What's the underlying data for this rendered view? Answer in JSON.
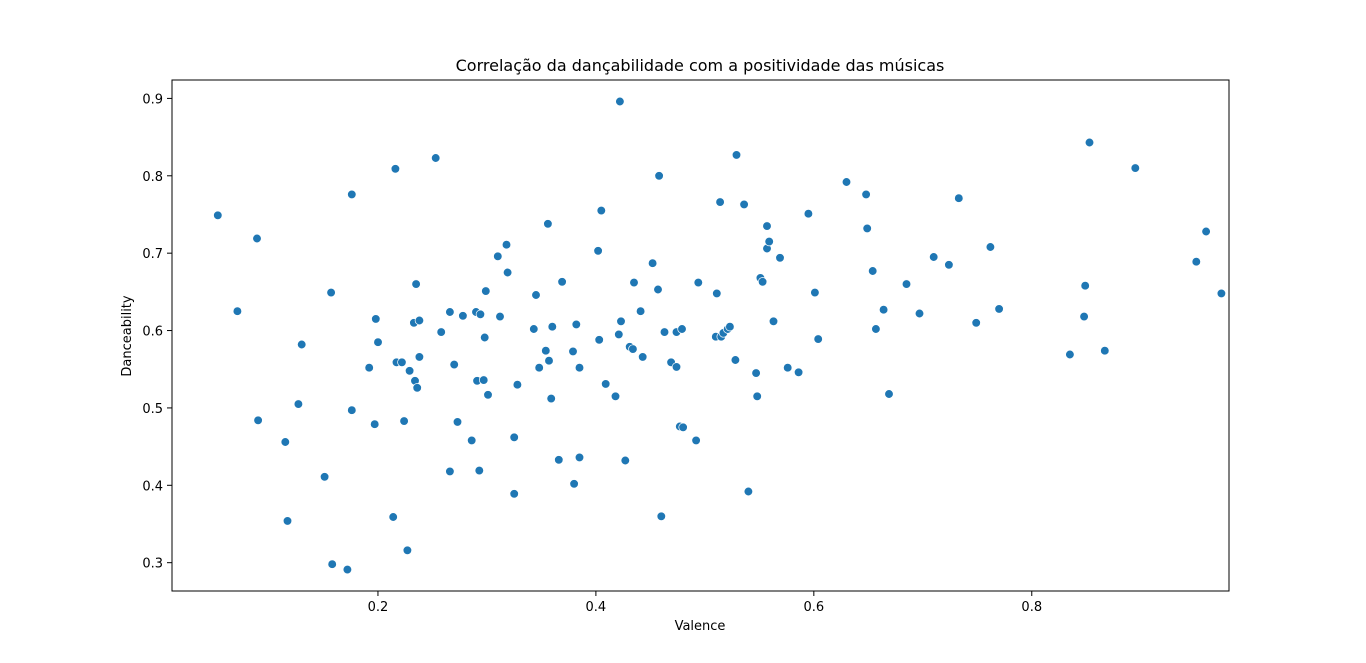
{
  "chart_data": {
    "type": "scatter",
    "title": "Correlação da dançabilidade com a positividade das músicas",
    "xlabel": "Valence",
    "ylabel": "Danceability",
    "xlim": [
      0.011,
      0.981
    ],
    "ylim": [
      0.2634,
      0.9238
    ],
    "xticks": [
      0.2,
      0.4,
      0.6,
      0.8
    ],
    "xtick_labels": [
      "0.2",
      "0.4",
      "0.6",
      "0.8"
    ],
    "yticks": [
      0.3,
      0.4,
      0.5,
      0.6,
      0.7,
      0.8,
      0.9
    ],
    "ytick_labels": [
      "0.3",
      "0.4",
      "0.5",
      "0.6",
      "0.7",
      "0.8",
      "0.9"
    ],
    "grid": false,
    "marker_color": "#1f77b4",
    "points": [
      [
        0.053,
        0.749
      ],
      [
        0.071,
        0.625
      ],
      [
        0.089,
        0.719
      ],
      [
        0.09,
        0.484
      ],
      [
        0.115,
        0.456
      ],
      [
        0.117,
        0.354
      ],
      [
        0.127,
        0.505
      ],
      [
        0.13,
        0.582
      ],
      [
        0.151,
        0.411
      ],
      [
        0.157,
        0.649
      ],
      [
        0.158,
        0.298
      ],
      [
        0.172,
        0.291
      ],
      [
        0.176,
        0.776
      ],
      [
        0.176,
        0.497
      ],
      [
        0.192,
        0.552
      ],
      [
        0.197,
        0.479
      ],
      [
        0.198,
        0.615
      ],
      [
        0.2,
        0.585
      ],
      [
        0.214,
        0.359
      ],
      [
        0.216,
        0.809
      ],
      [
        0.217,
        0.559
      ],
      [
        0.222,
        0.559
      ],
      [
        0.224,
        0.483
      ],
      [
        0.227,
        0.316
      ],
      [
        0.229,
        0.548
      ],
      [
        0.233,
        0.61
      ],
      [
        0.234,
        0.535
      ],
      [
        0.235,
        0.66
      ],
      [
        0.236,
        0.526
      ],
      [
        0.238,
        0.613
      ],
      [
        0.238,
        0.566
      ],
      [
        0.253,
        0.823
      ],
      [
        0.258,
        0.598
      ],
      [
        0.266,
        0.624
      ],
      [
        0.266,
        0.418
      ],
      [
        0.27,
        0.556
      ],
      [
        0.273,
        0.482
      ],
      [
        0.278,
        0.619
      ],
      [
        0.286,
        0.458
      ],
      [
        0.29,
        0.624
      ],
      [
        0.291,
        0.535
      ],
      [
        0.293,
        0.419
      ],
      [
        0.294,
        0.621
      ],
      [
        0.297,
        0.536
      ],
      [
        0.299,
        0.651
      ],
      [
        0.298,
        0.591
      ],
      [
        0.301,
        0.517
      ],
      [
        0.31,
        0.696
      ],
      [
        0.312,
        0.618
      ],
      [
        0.318,
        0.711
      ],
      [
        0.319,
        0.675
      ],
      [
        0.325,
        0.389
      ],
      [
        0.325,
        0.462
      ],
      [
        0.328,
        0.53
      ],
      [
        0.343,
        0.602
      ],
      [
        0.345,
        0.646
      ],
      [
        0.348,
        0.552
      ],
      [
        0.354,
        0.574
      ],
      [
        0.356,
        0.738
      ],
      [
        0.357,
        0.561
      ],
      [
        0.359,
        0.512
      ],
      [
        0.36,
        0.605
      ],
      [
        0.366,
        0.433
      ],
      [
        0.369,
        0.663
      ],
      [
        0.379,
        0.573
      ],
      [
        0.38,
        0.402
      ],
      [
        0.382,
        0.608
      ],
      [
        0.385,
        0.436
      ],
      [
        0.385,
        0.552
      ],
      [
        0.402,
        0.703
      ],
      [
        0.403,
        0.588
      ],
      [
        0.405,
        0.755
      ],
      [
        0.409,
        0.531
      ],
      [
        0.418,
        0.515
      ],
      [
        0.421,
        0.595
      ],
      [
        0.422,
        0.896
      ],
      [
        0.423,
        0.612
      ],
      [
        0.427,
        0.432
      ],
      [
        0.431,
        0.579
      ],
      [
        0.434,
        0.576
      ],
      [
        0.435,
        0.662
      ],
      [
        0.441,
        0.625
      ],
      [
        0.443,
        0.566
      ],
      [
        0.452,
        0.687
      ],
      [
        0.457,
        0.653
      ],
      [
        0.458,
        0.8
      ],
      [
        0.46,
        0.36
      ],
      [
        0.463,
        0.598
      ],
      [
        0.469,
        0.559
      ],
      [
        0.474,
        0.553
      ],
      [
        0.474,
        0.598
      ],
      [
        0.477,
        0.476
      ],
      [
        0.479,
        0.602
      ],
      [
        0.48,
        0.475
      ],
      [
        0.492,
        0.458
      ],
      [
        0.494,
        0.662
      ],
      [
        0.51,
        0.592
      ],
      [
        0.511,
        0.648
      ],
      [
        0.514,
        0.766
      ],
      [
        0.515,
        0.592
      ],
      [
        0.517,
        0.597
      ],
      [
        0.521,
        0.602
      ],
      [
        0.523,
        0.605
      ],
      [
        0.528,
        0.562
      ],
      [
        0.529,
        0.827
      ],
      [
        0.536,
        0.763
      ],
      [
        0.54,
        0.392
      ],
      [
        0.547,
        0.545
      ],
      [
        0.548,
        0.515
      ],
      [
        0.551,
        0.668
      ],
      [
        0.553,
        0.663
      ],
      [
        0.557,
        0.706
      ],
      [
        0.557,
        0.735
      ],
      [
        0.559,
        0.715
      ],
      [
        0.563,
        0.612
      ],
      [
        0.569,
        0.694
      ],
      [
        0.576,
        0.552
      ],
      [
        0.586,
        0.546
      ],
      [
        0.595,
        0.751
      ],
      [
        0.601,
        0.649
      ],
      [
        0.604,
        0.589
      ],
      [
        0.63,
        0.792
      ],
      [
        0.648,
        0.776
      ],
      [
        0.649,
        0.732
      ],
      [
        0.654,
        0.677
      ],
      [
        0.657,
        0.602
      ],
      [
        0.664,
        0.627
      ],
      [
        0.669,
        0.518
      ],
      [
        0.685,
        0.66
      ],
      [
        0.697,
        0.622
      ],
      [
        0.71,
        0.695
      ],
      [
        0.724,
        0.685
      ],
      [
        0.733,
        0.771
      ],
      [
        0.749,
        0.61
      ],
      [
        0.762,
        0.708
      ],
      [
        0.77,
        0.628
      ],
      [
        0.835,
        0.569
      ],
      [
        0.848,
        0.618
      ],
      [
        0.849,
        0.658
      ],
      [
        0.853,
        0.843
      ],
      [
        0.867,
        0.574
      ],
      [
        0.895,
        0.81
      ],
      [
        0.951,
        0.689
      ],
      [
        0.96,
        0.728
      ],
      [
        0.974,
        0.648
      ]
    ]
  }
}
